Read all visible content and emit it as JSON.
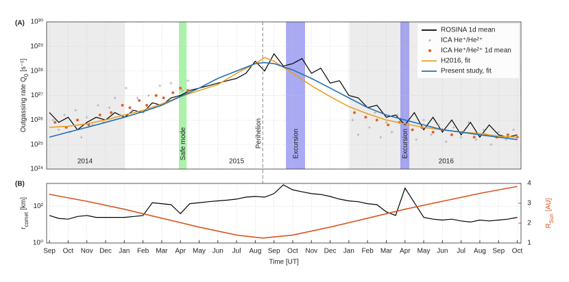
{
  "chart_data": [
    {
      "type": "line",
      "panel_label": "(A)",
      "ylabel": {
        "main": "Outgassing rate Q",
        "sub": "0",
        "unit": "[s⁻¹]"
      },
      "ylog": true,
      "ylim": [
        1e+24,
        1e+30
      ],
      "yticks": [
        {
          "value": 1e+24,
          "label": "10²⁴"
        },
        {
          "value": 1e+25,
          "label": "10²⁵"
        },
        {
          "value": 1e+26,
          "label": "10²⁶"
        },
        {
          "value": 1e+27,
          "label": "10²⁷"
        },
        {
          "value": 1e+28,
          "label": "10²⁸"
        },
        {
          "value": 1e+29,
          "label": "10²⁹"
        },
        {
          "value": 1e+30,
          "label": "10³⁰"
        }
      ],
      "grid": true,
      "legend": "upper right",
      "regions": [
        {
          "x": [
            -0.15,
            4.02
          ],
          "color": "#ececec"
        },
        {
          "x": [
            16.04,
            25.2
          ],
          "color": "#ececec"
        },
        {
          "label": "Safe mode",
          "x": [
            6.92,
            7.33
          ],
          "color": "#8ef08e"
        },
        {
          "label": "Excursion",
          "x": [
            12.64,
            13.66
          ],
          "color": "#8c8cf0"
        },
        {
          "label": "Excursion",
          "x": [
            18.75,
            19.23
          ],
          "color": "#8c8cf0"
        }
      ],
      "vline": {
        "label": "Perihelion",
        "x": 11.4,
        "color": "#888888"
      },
      "year_labels": [
        {
          "text": "2014",
          "x": 1.9
        },
        {
          "text": "2015",
          "x": 10
        },
        {
          "text": "2016",
          "x": 21.2
        }
      ],
      "series": [
        {
          "name": "ROSINA 1d mean",
          "type": "line",
          "color": "#000000",
          "x": [
            0,
            0.5,
            1,
            1.5,
            2,
            2.5,
            3,
            3.5,
            4,
            4.5,
            5,
            5.5,
            6,
            6.5,
            7,
            7.5,
            8,
            8.5,
            9,
            9.5,
            10,
            10.5,
            11,
            11.5,
            12,
            12.5,
            13,
            13.5,
            14,
            14.5,
            15,
            15.5,
            16,
            16.5,
            17,
            17.5,
            18,
            18.5,
            19,
            19.5,
            20,
            20.5,
            21,
            21.5,
            22,
            22.5,
            23,
            23.5,
            24,
            24.5,
            25
          ],
          "values": [
            2e+26,
            8e+25,
            1.3e+26,
            4e+25,
            8e+25,
            1.3e+26,
            1e+26,
            2e+26,
            1.3e+26,
            2.5e+26,
            2e+26,
            5e+26,
            4e+26,
            8e+26,
            1e+27,
            1.6e+27,
            2e+27,
            2.5e+27,
            3.2e+27,
            4e+27,
            5e+27,
            8e+27,
            2.5e+28,
            1e+28,
            5e+28,
            1.6e+28,
            2e+28,
            3.2e+28,
            8e+27,
            1.3e+28,
            3.2e+27,
            4e+27,
            1e+27,
            8e+26,
            3.2e+26,
            4e+26,
            1.3e+26,
            1.6e+26,
            6.3e+25,
            2e+26,
            4e+25,
            1.3e+26,
            3.2e+25,
            1e+26,
            2.5e+25,
            8e+25,
            2e+25,
            6.3e+25,
            2.5e+25,
            2e+25,
            2.5e+25
          ]
        },
        {
          "name": "ICA He⁺/He²⁺",
          "type": "scatter",
          "marker": "plus",
          "color": "#a8a8a8",
          "x": [
            0.2,
            0.5,
            0.8,
            1.1,
            1.4,
            1.7,
            2.0,
            2.3,
            2.6,
            2.9,
            3.2,
            3.5,
            3.8,
            4.1,
            4.4,
            4.7,
            5.0,
            5.3,
            5.6,
            5.9,
            6.2,
            6.5,
            6.8,
            7.1,
            7.4,
            16.2,
            16.5,
            16.8,
            17.1,
            17.4,
            17.7,
            18.0,
            18.3,
            18.6,
            19.2,
            19.6,
            20.0,
            20.4,
            20.8,
            21.2,
            21.6,
            22.0,
            22.4,
            22.8,
            23.2,
            23.6,
            24.0,
            24.4,
            24.8
          ],
          "values": [
            1e+26,
            4e+25,
            1.6e+26,
            3.2e+25,
            2.5e+26,
            2e+25,
            1.3e+26,
            6.3e+25,
            4e+26,
            8e+25,
            3.2e+26,
            8e+26,
            1.6e+26,
            2e+27,
            2.5e+26,
            8e+26,
            2e+26,
            1e+27,
            3.2e+26,
            2.5e+27,
            5e+26,
            3.2e+27,
            8e+26,
            1.6e+27,
            4e+27,
            1e+26,
            2.5e+25,
            4e+26,
            5e+25,
            2e+26,
            2e+25,
            8e+25,
            3.2e+25,
            1.6e+26,
            4e+25,
            1.6e+25,
            1e+26,
            2.5e+25,
            6.3e+25,
            1.3e+25,
            5e+25,
            2e+25,
            8e+25,
            1.6e+25,
            4e+25,
            1e+25,
            3.2e+25,
            1.6e+25,
            4e+25
          ]
        },
        {
          "name": "ICA He⁺/He²⁺ 1d mean",
          "type": "scatter",
          "marker": "dot",
          "color": "#e2622a",
          "x": [
            0.3,
            0.9,
            1.5,
            2.1,
            2.7,
            3.3,
            3.9,
            4.3,
            4.8,
            5.2,
            5.7,
            6.1,
            6.6,
            7.0,
            7.4,
            16.3,
            16.9,
            17.5,
            18.1,
            18.7,
            19.4,
            19.9,
            20.5,
            21.0,
            21.5,
            22.1,
            22.7,
            23.3,
            23.9,
            24.5,
            25.0
          ],
          "values": [
            8e+25,
            5e+25,
            1e+26,
            6.3e+25,
            1.6e+26,
            2e+26,
            4e+26,
            3.2e+26,
            6.3e+26,
            4e+26,
            1e+27,
            8e+26,
            1.3e+27,
            2e+27,
            1.6e+27,
            2e+26,
            1.3e+26,
            1e+26,
            6.3e+25,
            8e+25,
            4e+25,
            5e+25,
            3.2e+25,
            4e+25,
            2.5e+25,
            3.2e+25,
            2e+25,
            2.5e+25,
            2e+25,
            2.5e+25,
            2e+25
          ]
        },
        {
          "name": "H2016, fit",
          "type": "line",
          "color": "#e8a020",
          "x": [
            0,
            1,
            2,
            3,
            4,
            5,
            6,
            7,
            8,
            9,
            10,
            11,
            11.5,
            12,
            13,
            14,
            15,
            16,
            17,
            18,
            19,
            20,
            21,
            22,
            23,
            24,
            25
          ],
          "values": [
            5e+25,
            5.6e+25,
            7e+25,
            1e+26,
            1.6e+26,
            2.5e+26,
            4.5e+26,
            9e+26,
            1.6e+27,
            2.8e+27,
            8e+27,
            2e+28,
            3.5e+28,
            2.5e+28,
            8e+27,
            2.5e+27,
            9e+26,
            3.5e+26,
            1.8e+26,
            1e+26,
            7e+25,
            5e+25,
            4e+25,
            3.2e+25,
            2.8e+25,
            2.2e+25,
            2e+25
          ]
        },
        {
          "name": "Present study, fit",
          "type": "line",
          "color": "#1f6fb4",
          "x": [
            0,
            1,
            2,
            3,
            4,
            5,
            6,
            7,
            8,
            9,
            10,
            11,
            11.5,
            12,
            13,
            14,
            15,
            16,
            17,
            18,
            19,
            20,
            21,
            22,
            23,
            24,
            25
          ],
          "values": [
            2e+25,
            3.2e+25,
            5e+25,
            8e+25,
            1.3e+26,
            2.2e+26,
            4e+26,
            9e+26,
            2e+27,
            5e+27,
            1e+28,
            2e+28,
            2.2e+28,
            2e+28,
            1.1e+28,
            5e+27,
            2e+27,
            8e+26,
            3.2e+26,
            1.6e+26,
            1e+26,
            6.3e+25,
            4e+25,
            3.2e+25,
            2.5e+25,
            2e+25,
            1.6e+25
          ]
        }
      ]
    },
    {
      "type": "line",
      "panel_label": "(B)",
      "xlabel": "Time [UT]",
      "ylabel": {
        "main": "r",
        "sub": "comet",
        "unit": "[km]"
      },
      "y2label": {
        "main": "R",
        "sub": "Sun",
        "unit": "[AU]",
        "color": "#d9541e"
      },
      "ylog": true,
      "ylim": [
        1,
        1800
      ],
      "yticks": [
        {
          "value": 1,
          "label": "10⁰"
        },
        {
          "value": 100,
          "label": "10²"
        }
      ],
      "y2lim": [
        1,
        4
      ],
      "y2ticks": [
        1,
        2,
        3,
        4
      ],
      "grid": true,
      "xlim": [
        -0.15,
        25.2
      ],
      "xticks": [
        {
          "value": 0,
          "label": "Sep"
        },
        {
          "value": 1,
          "label": "Oct"
        },
        {
          "value": 2,
          "label": "Nov"
        },
        {
          "value": 3,
          "label": "Dec"
        },
        {
          "value": 4,
          "label": "Jan"
        },
        {
          "value": 5,
          "label": "Feb"
        },
        {
          "value": 6,
          "label": "Mar"
        },
        {
          "value": 7,
          "label": "Apr"
        },
        {
          "value": 8,
          "label": "May"
        },
        {
          "value": 9,
          "label": "Jun"
        },
        {
          "value": 10,
          "label": "Jul"
        },
        {
          "value": 11,
          "label": "Aug"
        },
        {
          "value": 12,
          "label": "Sep"
        },
        {
          "value": 13,
          "label": "Oct"
        },
        {
          "value": 14,
          "label": "Nov"
        },
        {
          "value": 15,
          "label": "Dec"
        },
        {
          "value": 16,
          "label": "Jan"
        },
        {
          "value": 17,
          "label": "Feb"
        },
        {
          "value": 18,
          "label": "Mar"
        },
        {
          "value": 19,
          "label": "Apr"
        },
        {
          "value": 20,
          "label": "May"
        },
        {
          "value": 21,
          "label": "Jun"
        },
        {
          "value": 22,
          "label": "Jul"
        },
        {
          "value": 23,
          "label": "Aug"
        },
        {
          "value": 24,
          "label": "Sep"
        },
        {
          "value": 25,
          "label": "Oct"
        }
      ],
      "series": [
        {
          "type": "line",
          "color": "#000000",
          "x": [
            0,
            0.5,
            1,
            1.5,
            2,
            2.5,
            3,
            3.5,
            4,
            4.5,
            5,
            5.5,
            6,
            6.5,
            7,
            7.5,
            8,
            8.5,
            9,
            9.5,
            10,
            10.5,
            11,
            11.5,
            12,
            12.5,
            13,
            13.5,
            14,
            14.5,
            15,
            15.5,
            16,
            16.5,
            17,
            17.5,
            18,
            18.5,
            19,
            19.5,
            20,
            20.5,
            21,
            21.5,
            22,
            22.5,
            23,
            23.5,
            24,
            24.5,
            25
          ],
          "values": [
            32,
            22,
            20,
            28,
            32,
            25,
            25,
            25,
            25,
            28,
            32,
            160,
            140,
            125,
            40,
            140,
            160,
            180,
            200,
            220,
            250,
            320,
            350,
            320,
            500,
            1500,
            800,
            630,
            500,
            450,
            350,
            250,
            200,
            180,
            140,
            125,
            50,
            32,
            1000,
            160,
            25,
            20,
            18,
            20,
            16,
            14,
            18,
            16,
            18,
            20,
            25
          ]
        },
        {
          "type": "line",
          "axis": "y2",
          "color": "#d9541e",
          "x": [
            0,
            2,
            4,
            6,
            8,
            10,
            11.4,
            13,
            15,
            17,
            19,
            21,
            23,
            25
          ],
          "values": [
            3.45,
            3.1,
            2.7,
            2.25,
            1.8,
            1.4,
            1.25,
            1.4,
            1.8,
            2.25,
            2.7,
            3.1,
            3.5,
            3.85
          ]
        }
      ]
    }
  ]
}
